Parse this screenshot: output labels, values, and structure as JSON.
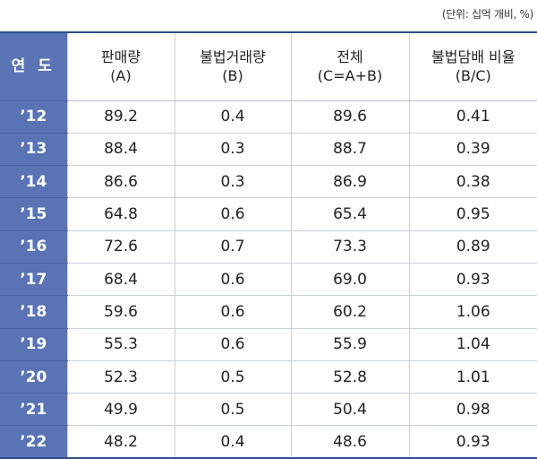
{
  "unit_note": "(단위: 십억 개비, %)",
  "headers": [
    {
      "line1": "연 도",
      "line2": ""
    },
    {
      "line1": "판매량",
      "line2": "(A)"
    },
    {
      "line1": "불법거래량",
      "line2": "(B)"
    },
    {
      "line1": "전체",
      "line2": "(C=A+B)"
    },
    {
      "line1": "불법담배 비율",
      "line2": "(B/C)"
    }
  ],
  "rows": [
    {
      "year": "’12",
      "a": "89.2",
      "b": "0.4",
      "c": "89.6",
      "ratio": "0.41"
    },
    {
      "year": "’13",
      "a": "88.4",
      "b": "0.3",
      "c": "88.7",
      "ratio": "0.39"
    },
    {
      "year": "’14",
      "a": "86.6",
      "b": "0.3",
      "c": "86.9",
      "ratio": "0.38"
    },
    {
      "year": "’15",
      "a": "64.8",
      "b": "0.6",
      "c": "65.4",
      "ratio": "0.95"
    },
    {
      "year": "’16",
      "a": "72.6",
      "b": "0.7",
      "c": "73.3",
      "ratio": "0.89"
    },
    {
      "year": "’17",
      "a": "68.4",
      "b": "0.6",
      "c": "69.0",
      "ratio": "0.93"
    },
    {
      "year": "’18",
      "a": "59.6",
      "b": "0.6",
      "c": "60.2",
      "ratio": "1.06"
    },
    {
      "year": "’19",
      "a": "55.3",
      "b": "0.6",
      "c": "55.9",
      "ratio": "1.04"
    },
    {
      "year": "’20",
      "a": "52.3",
      "b": "0.5",
      "c": "52.8",
      "ratio": "1.01"
    },
    {
      "year": "’21",
      "a": "49.9",
      "b": "0.5",
      "c": "50.4",
      "ratio": "0.98"
    },
    {
      "year": "’22",
      "a": "48.2",
      "b": "0.4",
      "c": "48.6",
      "ratio": "0.93"
    }
  ],
  "colors": {
    "header_accent": "#5973b5",
    "border_dark": "#2f4d8c",
    "border_light": "#c9cfdf"
  }
}
